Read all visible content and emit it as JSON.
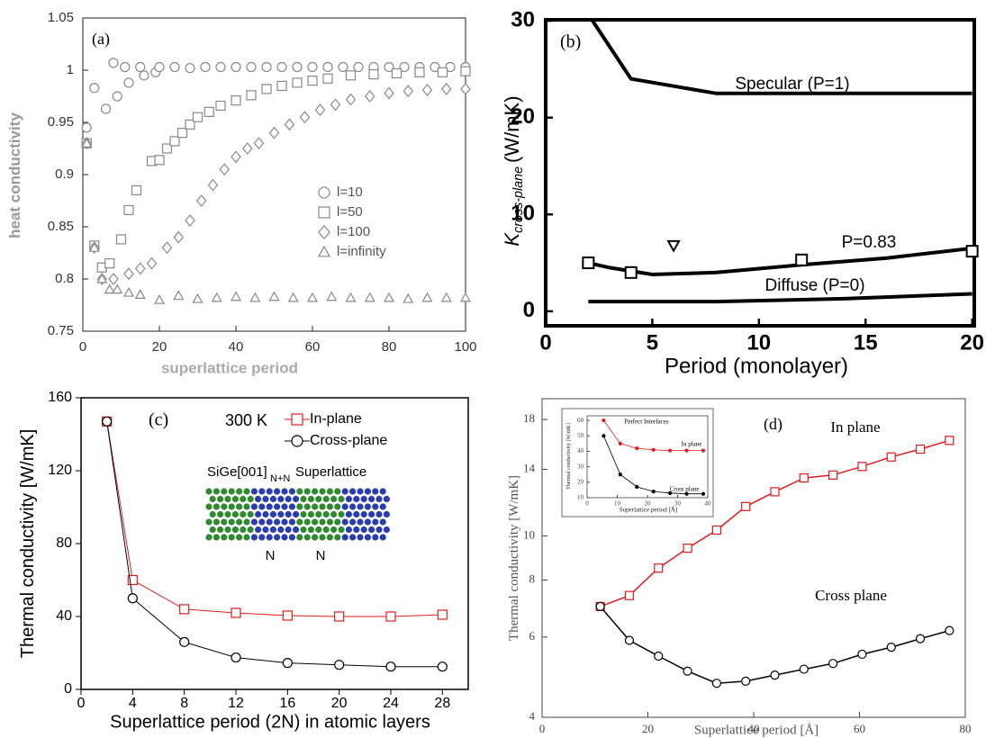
{
  "chart_data": [
    {
      "type": "scatter",
      "xlabel": "superlattice period",
      "ylabel": "heat conductivity",
      "annotations": [
        "(a)"
      ],
      "xlim": [
        0,
        100
      ],
      "ylim": [
        0.75,
        1.05
      ],
      "xticks": [
        0,
        20,
        40,
        60,
        80,
        100
      ],
      "yticks": [
        0.75,
        0.8,
        0.85,
        0.9,
        0.95,
        1,
        1.05
      ],
      "legend": "center right",
      "grid": false,
      "series": [
        {
          "name": "l=10",
          "color": "#888888",
          "marker": "circle",
          "mode": "markers",
          "x": [
            1,
            3,
            6,
            8,
            9,
            11,
            12,
            15,
            16,
            19,
            20,
            24,
            28,
            32,
            36,
            40,
            44,
            48,
            52,
            56,
            60,
            64,
            68,
            72,
            76,
            80,
            84,
            88,
            92,
            96,
            100
          ],
          "values": [
            0.945,
            0.983,
            0.963,
            1.007,
            0.975,
            1.003,
            0.988,
            1.003,
            0.995,
            0.998,
            1.003,
            1.003,
            1.002,
            1.003,
            1.003,
            1.003,
            1.003,
            1.003,
            1.003,
            1.003,
            1.003,
            1.003,
            1.003,
            1.003,
            1.003,
            1.003,
            1.003,
            1.003,
            1.003,
            1.003,
            1.003
          ]
        },
        {
          "name": "l=50",
          "color": "#888888",
          "marker": "square",
          "mode": "markers",
          "x": [
            1,
            3,
            5,
            7,
            10,
            12,
            14,
            18,
            20,
            22,
            24,
            26,
            28,
            30,
            33,
            36,
            40,
            44,
            48,
            52,
            56,
            60,
            64,
            70,
            76,
            82,
            88,
            94,
            100
          ],
          "values": [
            0.93,
            0.832,
            0.811,
            0.815,
            0.838,
            0.866,
            0.885,
            0.913,
            0.914,
            0.925,
            0.932,
            0.94,
            0.948,
            0.955,
            0.96,
            0.966,
            0.971,
            0.976,
            0.982,
            0.985,
            0.988,
            0.99,
            0.992,
            0.995,
            0.996,
            0.997,
            0.998,
            0.998,
            0.999
          ]
        },
        {
          "name": "l=100",
          "color": "#888888",
          "marker": "diamond",
          "mode": "markers",
          "x": [
            1,
            3,
            5,
            8,
            12,
            15,
            18,
            22,
            25,
            28,
            31,
            34,
            37,
            40,
            43,
            46,
            50,
            54,
            58,
            62,
            66,
            70,
            75,
            80,
            85,
            90,
            95,
            100
          ],
          "values": [
            0.93,
            0.83,
            0.8,
            0.8,
            0.805,
            0.81,
            0.815,
            0.83,
            0.84,
            0.856,
            0.875,
            0.89,
            0.905,
            0.917,
            0.925,
            0.93,
            0.94,
            0.948,
            0.955,
            0.962,
            0.967,
            0.972,
            0.975,
            0.978,
            0.98,
            0.981,
            0.982,
            0.982
          ]
        },
        {
          "name": "l=infinity",
          "color": "#888888",
          "marker": "triangle",
          "mode": "markers",
          "x": [
            1,
            3,
            5,
            7,
            9,
            12,
            15,
            20,
            25,
            30,
            35,
            40,
            45,
            50,
            55,
            60,
            65,
            70,
            75,
            80,
            85,
            90,
            95,
            100
          ],
          "values": [
            0.93,
            0.83,
            0.8,
            0.79,
            0.79,
            0.787,
            0.785,
            0.78,
            0.784,
            0.781,
            0.782,
            0.783,
            0.782,
            0.783,
            0.782,
            0.782,
            0.783,
            0.782,
            0.782,
            0.782,
            0.781,
            0.782,
            0.782,
            0.782
          ]
        }
      ]
    },
    {
      "type": "line",
      "xlabel": "Period (monolayer)",
      "ylabel": "K",
      "ylabel_sub": "cross-plane",
      "ylabel_unit": "(W/mK)",
      "annotations": [
        "(b)"
      ],
      "xlim": [
        0,
        20.1
      ],
      "ylim": [
        -1.5,
        30.1
      ],
      "xticks": [
        0,
        5,
        10,
        15,
        20
      ],
      "yticks": [
        0,
        10,
        20,
        30
      ],
      "legend": false,
      "grid": false,
      "series": [
        {
          "name": "Specular (P=1)",
          "color": "#000000",
          "mode": "lines",
          "x": [
            2.2,
            4,
            8,
            20
          ],
          "values": [
            30,
            24,
            22.5,
            22.5
          ]
        },
        {
          "name": "P=0.83",
          "color": "#000000",
          "mode": "lines",
          "x": [
            2,
            3,
            5,
            8,
            12,
            16,
            20
          ],
          "values": [
            5,
            4.5,
            3.8,
            4,
            4.8,
            5.5,
            6.5
          ]
        },
        {
          "name": "Diffuse (P=0)",
          "color": "#000000",
          "mode": "lines",
          "x": [
            2,
            8,
            14,
            20
          ],
          "values": [
            1,
            1,
            1.3,
            1.8
          ]
        },
        {
          "color": "#000000",
          "mode": "markers",
          "marker": "square",
          "x": [
            2,
            4,
            12,
            20
          ],
          "values": [
            5,
            4,
            5.3,
            6.2
          ]
        },
        {
          "color": "#000000",
          "mode": "markers",
          "marker": "triangle-down",
          "x": [
            6
          ],
          "values": [
            6.8
          ]
        }
      ]
    },
    {
      "type": "line",
      "xlabel": "Superlattice period (2N) in atomic layers",
      "ylabel": "Thermal conductivity [W/mK]",
      "annotations": [
        "(c)",
        "300 K",
        "SiGe[001]",
        "N+N",
        "Superlattice",
        "N",
        "N"
      ],
      "xlim": [
        0,
        30
      ],
      "ylim": [
        0,
        160
      ],
      "xticks": [
        0,
        4,
        8,
        12,
        16,
        20,
        24,
        28
      ],
      "yticks": [
        0,
        40,
        80,
        120,
        160
      ],
      "legend": "upper right",
      "grid": false,
      "series": [
        {
          "name": "In-plane",
          "color": "#e41a1c",
          "marker": "square",
          "mode": "lines+markers",
          "x": [
            2,
            4,
            8,
            12,
            16,
            20,
            24,
            28
          ],
          "values": [
            147,
            60,
            44,
            42,
            40.5,
            40,
            40,
            41
          ]
        },
        {
          "name": "Cross-plane",
          "color": "#000000",
          "marker": "circle",
          "mode": "lines+markers",
          "x": [
            2,
            4,
            8,
            12,
            16,
            20,
            24,
            28
          ],
          "values": [
            147,
            50,
            26,
            17.5,
            14.5,
            13.5,
            12.5,
            12.5
          ]
        }
      ]
    },
    {
      "type": "line",
      "xlabel": "Superlattice period [Å]",
      "ylabel": "Thermal conductivity [W/mK]",
      "annotations": [
        "(d)"
      ],
      "xlim": [
        0,
        80
      ],
      "ylim": [
        4,
        20
      ],
      "log_y": true,
      "xticks": [
        0,
        20,
        40,
        60,
        80
      ],
      "yticks": [
        4,
        6,
        8,
        10,
        14,
        18
      ],
      "legend": false,
      "grid": false,
      "series": [
        {
          "name": "In plane",
          "color": "#e41a1c",
          "marker": "square",
          "mode": "lines+markers",
          "x": [
            11,
            16.5,
            22,
            27.5,
            33,
            38.5,
            44,
            49.5,
            55,
            60.5,
            66,
            71.5,
            77
          ],
          "values": [
            7,
            7.4,
            8.5,
            9.4,
            10.3,
            11.6,
            12.5,
            13.4,
            13.6,
            14.2,
            14.9,
            15.5,
            16.2
          ]
        },
        {
          "name": "Cross plane",
          "color": "#000000",
          "marker": "circle",
          "mode": "lines+markers",
          "x": [
            11,
            16.5,
            22,
            27.5,
            33,
            38.5,
            44,
            49.5,
            55,
            60.5,
            66,
            71.5,
            77
          ],
          "values": [
            7,
            5.9,
            5.45,
            5.05,
            4.75,
            4.8,
            4.95,
            5.1,
            5.25,
            5.5,
            5.7,
            5.95,
            6.2
          ]
        }
      ]
    },
    {
      "type": "line",
      "title": "Perfect Interfaces",
      "xlabel": "Superlattice period [Å]",
      "ylabel": "Thermal conductivity [W/mK]",
      "xlim": [
        0,
        40
      ],
      "ylim": [
        10,
        63
      ],
      "xticks": [
        0,
        10,
        20,
        30,
        40
      ],
      "yticks": [
        10,
        20,
        30,
        40,
        50,
        60
      ],
      "legend": false,
      "grid": false,
      "series": [
        {
          "name": "In plane",
          "color": "#e41a1c",
          "marker": "dot",
          "mode": "lines+markers",
          "x": [
            5.5,
            11,
            16.5,
            22,
            27.5,
            33,
            38.5
          ],
          "values": [
            60,
            45,
            42,
            41,
            40.5,
            40.5,
            40.5
          ]
        },
        {
          "name": "Cross plane",
          "color": "#000000",
          "marker": "dot",
          "mode": "lines+markers",
          "x": [
            5.5,
            11,
            16.5,
            22,
            27.5,
            33,
            38.5
          ],
          "values": [
            50,
            25,
            17,
            14,
            13,
            12.5,
            12.5
          ]
        }
      ]
    }
  ]
}
